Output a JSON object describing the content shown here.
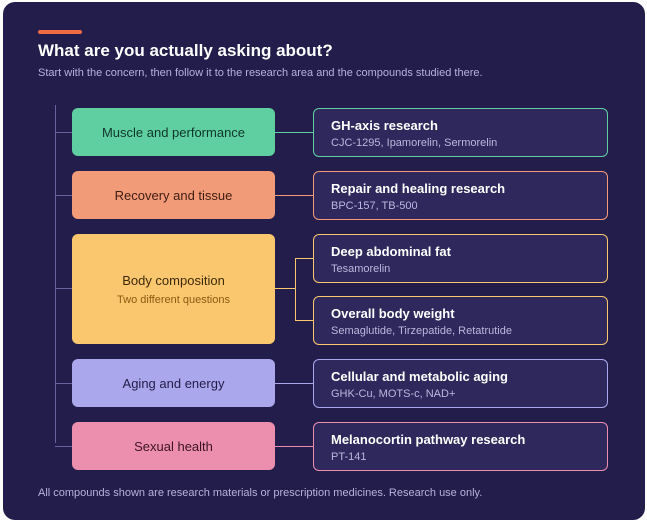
{
  "header": {
    "title": "What are you actually asking about?",
    "subtitle": "Start with the concern, then follow it to the research area and the compounds studied there."
  },
  "colors": {
    "background": "#221d4a",
    "accent": "#f06a43",
    "muscle": "#5fcfa2",
    "recovery": "#f19b79",
    "body_composition": "#fac76f",
    "aging": "#aba7ec",
    "sexual_health": "#ec8faf"
  },
  "categories": [
    {
      "label": "Muscle and performance"
    },
    {
      "label": "Recovery and tissue"
    },
    {
      "label": "Body composition",
      "sublabel": "Two different questions"
    },
    {
      "label": "Aging and energy"
    },
    {
      "label": "Sexual health"
    }
  ],
  "research_areas": [
    {
      "title": "GH-axis research",
      "compounds": "CJC-1295, Ipamorelin, Sermorelin"
    },
    {
      "title": "Repair and healing research",
      "compounds": "BPC-157, TB-500"
    },
    {
      "title": "Deep abdominal fat",
      "compounds": "Tesamorelin"
    },
    {
      "title": "Overall body weight",
      "compounds": "Semaglutide, Tirzepatide, Retatrutide"
    },
    {
      "title": "Cellular and metabolic aging",
      "compounds": "GHK-Cu, MOTS-c, NAD+"
    },
    {
      "title": "Melanocortin pathway research",
      "compounds": "PT-141"
    }
  ],
  "footer": {
    "note": "All compounds shown are research materials or prescription medicines. Research use only."
  }
}
